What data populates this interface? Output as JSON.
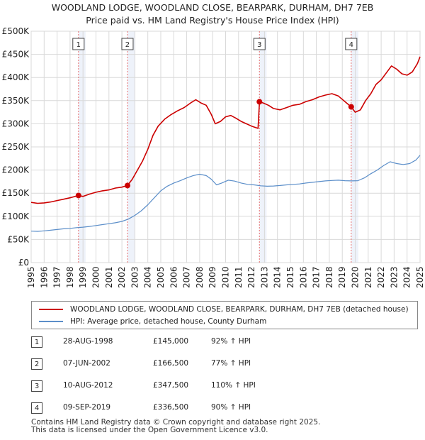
{
  "chart_data": {
    "type": "line",
    "title_lines": [
      "WOODLAND LODGE, WOODLAND CLOSE, BEARPARK, DURHAM, DH7 7EB",
      "Price paid vs. HM Land Registry's House Price Index (HPI)"
    ],
    "x_ticks": [
      "1995",
      "1996",
      "1997",
      "1998",
      "1999",
      "2000",
      "2001",
      "2002",
      "2003",
      "2004",
      "2005",
      "2006",
      "2007",
      "2008",
      "2009",
      "2010",
      "2011",
      "2012",
      "2013",
      "2014",
      "2015",
      "2016",
      "2017",
      "2018",
      "2019",
      "2020",
      "2021",
      "2022",
      "2023",
      "2024",
      "2025"
    ],
    "y_ticks": [
      "£0",
      "£50K",
      "£100K",
      "£150K",
      "£200K",
      "£250K",
      "£300K",
      "£350K",
      "£400K",
      "£450K",
      "£500K"
    ],
    "xlim": [
      1995,
      2025
    ],
    "ylim": [
      0,
      500000
    ],
    "grid": true,
    "legend_position": "below",
    "series": [
      {
        "name": "WOODLAND LODGE, WOODLAND CLOSE, BEARPARK, DURHAM, DH7 7EB (detached house)",
        "color": "#cc0000",
        "points": [
          [
            1995.0,
            130000
          ],
          [
            1995.5,
            128000
          ],
          [
            1996.0,
            129000
          ],
          [
            1996.5,
            131000
          ],
          [
            1997.0,
            134000
          ],
          [
            1997.5,
            137000
          ],
          [
            1998.0,
            140000
          ],
          [
            1998.65,
            145000
          ],
          [
            1999.0,
            143000
          ],
          [
            1999.5,
            148000
          ],
          [
            2000.0,
            152000
          ],
          [
            2000.5,
            155000
          ],
          [
            2001.0,
            157000
          ],
          [
            2001.5,
            161000
          ],
          [
            2002.0,
            163000
          ],
          [
            2002.43,
            166500
          ],
          [
            2002.8,
            180000
          ],
          [
            2003.2,
            200000
          ],
          [
            2003.6,
            220000
          ],
          [
            2004.0,
            245000
          ],
          [
            2004.4,
            275000
          ],
          [
            2004.8,
            295000
          ],
          [
            2005.3,
            310000
          ],
          [
            2005.8,
            320000
          ],
          [
            2006.3,
            328000
          ],
          [
            2006.8,
            335000
          ],
          [
            2007.3,
            345000
          ],
          [
            2007.7,
            352000
          ],
          [
            2008.1,
            345000
          ],
          [
            2008.5,
            340000
          ],
          [
            2008.9,
            320000
          ],
          [
            2009.2,
            300000
          ],
          [
            2009.6,
            305000
          ],
          [
            2010.0,
            315000
          ],
          [
            2010.4,
            318000
          ],
          [
            2010.8,
            312000
          ],
          [
            2011.2,
            305000
          ],
          [
            2011.6,
            300000
          ],
          [
            2012.0,
            295000
          ],
          [
            2012.5,
            290000
          ],
          [
            2012.61,
            347500
          ],
          [
            2012.9,
            345000
          ],
          [
            2013.3,
            340000
          ],
          [
            2013.7,
            333000
          ],
          [
            2014.2,
            330000
          ],
          [
            2014.7,
            335000
          ],
          [
            2015.2,
            340000
          ],
          [
            2015.7,
            342000
          ],
          [
            2016.2,
            348000
          ],
          [
            2016.7,
            352000
          ],
          [
            2017.2,
            358000
          ],
          [
            2017.7,
            362000
          ],
          [
            2018.2,
            365000
          ],
          [
            2018.7,
            360000
          ],
          [
            2019.2,
            348000
          ],
          [
            2019.69,
            336500
          ],
          [
            2020.0,
            325000
          ],
          [
            2020.4,
            330000
          ],
          [
            2020.8,
            350000
          ],
          [
            2021.2,
            365000
          ],
          [
            2021.6,
            385000
          ],
          [
            2022.0,
            395000
          ],
          [
            2022.4,
            410000
          ],
          [
            2022.8,
            425000
          ],
          [
            2023.2,
            418000
          ],
          [
            2023.6,
            408000
          ],
          [
            2024.0,
            405000
          ],
          [
            2024.4,
            412000
          ],
          [
            2024.8,
            430000
          ],
          [
            2025.0,
            445000
          ]
        ]
      },
      {
        "name": "HPI: Average price, detached house, County Durham",
        "color": "#5b8ec9",
        "points": [
          [
            1995.0,
            68000
          ],
          [
            1995.5,
            67500
          ],
          [
            1996.0,
            68500
          ],
          [
            1996.5,
            70000
          ],
          [
            1997.0,
            71500
          ],
          [
            1997.5,
            73000
          ],
          [
            1998.0,
            74000
          ],
          [
            1998.5,
            75500
          ],
          [
            1999.0,
            76500
          ],
          [
            1999.5,
            78000
          ],
          [
            2000.0,
            80000
          ],
          [
            2000.5,
            82000
          ],
          [
            2001.0,
            84000
          ],
          [
            2001.5,
            86000
          ],
          [
            2002.0,
            89000
          ],
          [
            2002.5,
            94000
          ],
          [
            2003.0,
            102000
          ],
          [
            2003.5,
            112000
          ],
          [
            2004.0,
            125000
          ],
          [
            2004.5,
            140000
          ],
          [
            2005.0,
            155000
          ],
          [
            2005.5,
            165000
          ],
          [
            2006.0,
            172000
          ],
          [
            2006.5,
            177000
          ],
          [
            2007.0,
            183000
          ],
          [
            2007.5,
            188000
          ],
          [
            2008.0,
            191000
          ],
          [
            2008.5,
            188000
          ],
          [
            2008.9,
            180000
          ],
          [
            2009.3,
            168000
          ],
          [
            2009.7,
            172000
          ],
          [
            2010.2,
            178000
          ],
          [
            2010.7,
            176000
          ],
          [
            2011.2,
            172000
          ],
          [
            2011.7,
            169000
          ],
          [
            2012.2,
            168000
          ],
          [
            2012.7,
            166000
          ],
          [
            2013.2,
            165000
          ],
          [
            2013.7,
            165500
          ],
          [
            2014.2,
            166500
          ],
          [
            2014.7,
            168000
          ],
          [
            2015.2,
            169000
          ],
          [
            2015.7,
            170000
          ],
          [
            2016.2,
            172000
          ],
          [
            2016.7,
            173500
          ],
          [
            2017.2,
            175000
          ],
          [
            2017.7,
            176500
          ],
          [
            2018.2,
            177500
          ],
          [
            2018.7,
            178000
          ],
          [
            2019.2,
            177000
          ],
          [
            2019.7,
            176500
          ],
          [
            2020.2,
            177000
          ],
          [
            2020.7,
            183000
          ],
          [
            2021.2,
            192000
          ],
          [
            2021.7,
            200000
          ],
          [
            2022.2,
            210000
          ],
          [
            2022.7,
            218000
          ],
          [
            2023.2,
            214000
          ],
          [
            2023.7,
            212000
          ],
          [
            2024.2,
            214000
          ],
          [
            2024.7,
            222000
          ],
          [
            2025.0,
            232000
          ]
        ]
      }
    ],
    "sale_markers": [
      {
        "label": "1",
        "x": 1998.65,
        "y": 145000
      },
      {
        "label": "2",
        "x": 2002.43,
        "y": 166500
      },
      {
        "label": "3",
        "x": 2012.61,
        "y": 347500
      },
      {
        "label": "4",
        "x": 2019.69,
        "y": 336500
      }
    ],
    "colors": {
      "sale_line": "#cc0000",
      "hpi_line": "#5b8ec9",
      "marker_dash": "#e87070",
      "band": "#eef2fa",
      "grid": "#d9d9d9"
    }
  },
  "legend": {
    "property_label": "WOODLAND LODGE, WOODLAND CLOSE, BEARPARK, DURHAM, DH7 7EB (detached house)",
    "hpi_label": "HPI: Average price, detached house, County Durham"
  },
  "sales": [
    {
      "num": "1",
      "date": "28-AUG-1998",
      "price": "£145,000",
      "hpi": "92% ↑ HPI"
    },
    {
      "num": "2",
      "date": "07-JUN-2002",
      "price": "£166,500",
      "hpi": "77% ↑ HPI"
    },
    {
      "num": "3",
      "date": "10-AUG-2012",
      "price": "£347,500",
      "hpi": "110% ↑ HPI"
    },
    {
      "num": "4",
      "date": "09-SEP-2019",
      "price": "£336,500",
      "hpi": "90% ↑ HPI"
    }
  ],
  "footer": {
    "line1": "Contains HM Land Registry data © Crown copyright and database right 2025.",
    "line2": "This data is licensed under the Open Government Licence v3.0."
  }
}
